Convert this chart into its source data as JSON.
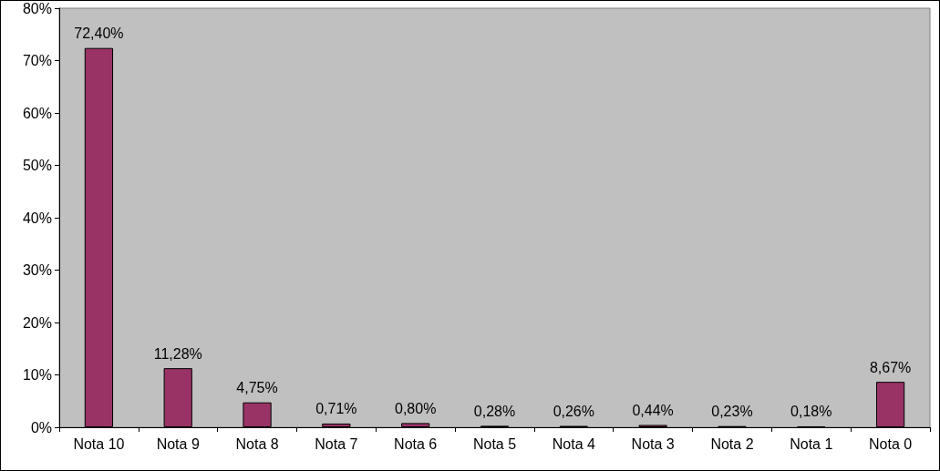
{
  "chart_data": {
    "type": "bar",
    "categories": [
      "Nota 10",
      "Nota 9",
      "Nota 8",
      "Nota 7",
      "Nota 6",
      "Nota 5",
      "Nota 4",
      "Nota 3",
      "Nota 2",
      "Nota 1",
      "Nota 0"
    ],
    "values": [
      72.4,
      11.28,
      4.75,
      0.71,
      0.8,
      0.28,
      0.26,
      0.44,
      0.23,
      0.18,
      8.67
    ],
    "value_labels": [
      "72,40%",
      "11,28%",
      "4,75%",
      "0,71%",
      "0,80%",
      "0,28%",
      "0,26%",
      "0,44%",
      "0,23%",
      "0,18%",
      "8,67%"
    ],
    "color": "#993366",
    "ylim": [
      0,
      80
    ],
    "yticks": [
      {
        "value": 0,
        "label": "0%"
      },
      {
        "value": 10,
        "label": "10%"
      },
      {
        "value": 20,
        "label": "20%"
      },
      {
        "value": 30,
        "label": "30%"
      },
      {
        "value": 40,
        "label": "40%"
      },
      {
        "value": 50,
        "label": "50%"
      },
      {
        "value": 60,
        "label": "60%"
      },
      {
        "value": 70,
        "label": "70%"
      },
      {
        "value": 80,
        "label": "80%"
      }
    ],
    "grid": false
  }
}
